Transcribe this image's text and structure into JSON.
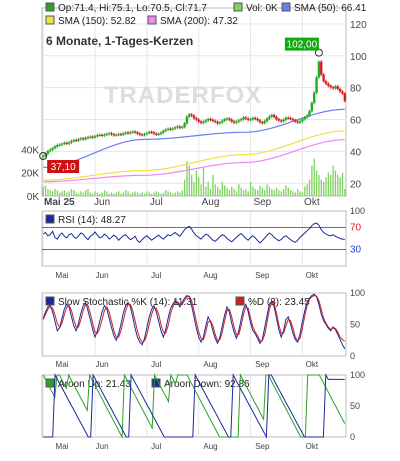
{
  "chart_data": [
    {
      "type": "candlestick",
      "title": "6 Monate, 1-Tages-Kerzen",
      "watermark": "TRADERFOX",
      "legend": [
        {
          "name": "Op:71.4, Hi:75.1, Lo:70.5, Cl:71.7",
          "color": "#2ca02c"
        },
        {
          "name": "Vol: 0K",
          "color": "#7dd35d"
        },
        {
          "name": "SMA (50): 66.41",
          "color": "#6680ee"
        },
        {
          "name": "SMA (150): 52.82",
          "color": "#f0e040"
        },
        {
          "name": "SMA (200): 47.32",
          "color": "#ee88ee"
        }
      ],
      "price_axis": [
        20,
        40,
        60,
        80,
        100,
        120
      ],
      "price_range": [
        12,
        130
      ],
      "volume_axis": [
        "0K",
        "20K",
        "40K"
      ],
      "x_labels": [
        "Mai 25",
        "Jun",
        "Jul",
        "Aug",
        "Sep",
        "Okt"
      ],
      "annotations": [
        {
          "label": "102,00",
          "color": "#11aa11",
          "value": 102
        },
        {
          "label": "37,10",
          "color": "#cc1111",
          "value": 37.1
        }
      ],
      "colors": {
        "up": "#22aa22",
        "down": "#cc2222",
        "grid": "#e6e6e6"
      },
      "close": [
        37.1,
        38.5,
        40.2,
        41.1,
        42.0,
        43.1,
        44.0,
        44.2,
        44.8,
        45.3,
        44.9,
        45.6,
        46.5,
        47.1,
        46.8,
        47.6,
        48.1,
        47.7,
        48.4,
        48.9,
        49.2,
        48.8,
        49.5,
        50.1,
        50.3,
        50.0,
        50.5,
        50.9,
        51.3,
        50.7,
        50.2,
        50.4,
        50.8,
        50.5,
        51.2,
        51.8,
        51.4,
        52.0,
        52.4,
        51.9,
        51.2,
        50.6,
        50.3,
        50.8,
        51.5,
        52.2,
        51.9,
        51.1,
        50.6,
        51.0,
        51.8,
        52.9,
        53.6,
        54.2,
        53.8,
        54.4,
        55.0,
        55.6,
        54.9,
        55.3,
        57.6,
        61.8,
        63.2,
        62.5,
        60.8,
        59.9,
        58.7,
        57.9,
        58.6,
        59.4,
        60.3,
        59.8,
        59.1,
        58.5,
        57.6,
        58.2,
        59.3,
        60.1,
        60.6,
        59.9,
        58.8,
        58.1,
        58.7,
        59.5,
        60.2,
        61.3,
        60.6,
        59.8,
        60.1,
        61.0,
        60.4,
        59.5,
        58.3,
        57.8,
        59.0,
        60.6,
        61.9,
        62.8,
        61.6,
        60.2,
        59.4,
        58.9,
        59.8,
        61.1,
        60.9,
        60.3,
        59.6,
        58.8,
        58.1,
        58.9,
        60.2,
        61.3,
        62.5,
        65.2,
        70.4,
        76.8,
        86.5,
        96.3,
        88.2,
        84.1,
        82.5,
        81.2,
        80.3,
        79.6,
        80.8,
        79.2,
        77.6,
        76.3,
        71.7
      ],
      "volume": [
        8,
        9,
        6,
        5,
        4,
        6,
        5,
        3,
        4,
        5,
        3,
        4,
        6,
        5,
        3,
        2,
        4,
        3,
        5,
        6,
        3,
        2,
        4,
        3,
        2,
        3,
        5,
        4,
        2,
        3,
        2,
        3,
        4,
        2,
        3,
        5,
        4,
        2,
        3,
        4,
        3,
        2,
        3,
        2,
        4,
        3,
        2,
        3,
        4,
        3,
        2,
        3,
        5,
        4,
        3,
        2,
        3,
        4,
        3,
        5,
        14,
        30,
        26,
        18,
        12,
        22,
        16,
        10,
        24,
        8,
        12,
        6,
        18,
        10,
        8,
        6,
        12,
        9,
        7,
        5,
        8,
        6,
        4,
        10,
        7,
        5,
        6,
        4,
        12,
        8,
        6,
        5,
        9,
        7,
        5,
        10,
        8,
        6,
        5,
        7,
        5,
        4,
        6,
        9,
        7,
        5,
        4,
        3,
        6,
        4,
        3,
        8,
        10,
        14,
        26,
        32,
        22,
        18,
        14,
        12,
        16,
        20,
        18,
        26,
        22,
        18,
        16,
        20,
        6
      ],
      "sma_curves": {
        "sma50": [
          30,
          47.5,
          52,
          66.41
        ],
        "sma150": [
          22,
          28,
          38,
          52.82
        ],
        "sma200": [
          21,
          25,
          33,
          47.32
        ]
      }
    },
    {
      "type": "line",
      "title": "RSI (14): 48.27",
      "axis": [
        30,
        70,
        100
      ],
      "levels": [
        30,
        70
      ],
      "range": [
        0,
        100
      ],
      "series": [
        {
          "name": "RSI (14): 48.27",
          "color": "#1a2a9a",
          "values": [
            58,
            61,
            55,
            57,
            63,
            52,
            49,
            56,
            60,
            54,
            51,
            57,
            59,
            53,
            50,
            55,
            60,
            58,
            52,
            48,
            54,
            57,
            62,
            56,
            51,
            53,
            58,
            55,
            49,
            52,
            56,
            53,
            47,
            51,
            55,
            57,
            52,
            48,
            50,
            54,
            46,
            43,
            48,
            52,
            55,
            51,
            47,
            50,
            53,
            56,
            52,
            49,
            53,
            57,
            55,
            58,
            61,
            57,
            54,
            60,
            66,
            70,
            72,
            67,
            60,
            55,
            52,
            49,
            54,
            58,
            56,
            51,
            47,
            45,
            49,
            53,
            57,
            55,
            50,
            47,
            44,
            48,
            52,
            56,
            59,
            55,
            50,
            47,
            52,
            55,
            51,
            46,
            42,
            46,
            51,
            56,
            60,
            57,
            52,
            49,
            46,
            48,
            53,
            55,
            51,
            48,
            45,
            43,
            47,
            52,
            56,
            60,
            64,
            68,
            73,
            77,
            78,
            74,
            66,
            61,
            58,
            56,
            55,
            57,
            54,
            52,
            50,
            49,
            48.27
          ]
        }
      ],
      "x_labels": [
        "Mai",
        "Jun",
        "Jul",
        "Aug",
        "Sep",
        "Okt"
      ]
    },
    {
      "type": "line",
      "title": "Slow Stochastic",
      "axis": [
        0,
        50,
        100
      ],
      "range": [
        0,
        100
      ],
      "series": [
        {
          "name": "Slow Stochastic %K (14): 11.31",
          "color": "#1a2a9a",
          "values": [
            60,
            70,
            78,
            80,
            70,
            55,
            40,
            45,
            60,
            75,
            82,
            78,
            62,
            48,
            40,
            52,
            68,
            80,
            85,
            72,
            58,
            42,
            30,
            40,
            55,
            70,
            80,
            75,
            60,
            45,
            32,
            25,
            35,
            50,
            68,
            80,
            85,
            78,
            62,
            44,
            30,
            22,
            18,
            28,
            45,
            62,
            74,
            80,
            70,
            55,
            40,
            30,
            42,
            60,
            75,
            82,
            88,
            84,
            78,
            85,
            92,
            96,
            94,
            80,
            62,
            44,
            30,
            22,
            30,
            48,
            62,
            55,
            40,
            28,
            20,
            30,
            48,
            65,
            78,
            70,
            52,
            38,
            28,
            40,
            58,
            75,
            82,
            70,
            52,
            40,
            35,
            28,
            20,
            26,
            45,
            65,
            82,
            88,
            78,
            60,
            42,
            30,
            40,
            58,
            62,
            50,
            36,
            26,
            22,
            35,
            55,
            72,
            85,
            92,
            96,
            98,
            94,
            82,
            66,
            56,
            50,
            44,
            40,
            46,
            42,
            34,
            26,
            18,
            11.31
          ]
        },
        {
          "name": "%D (3): 23.45",
          "color": "#cc2222",
          "values": [
            58,
            66,
            74,
            79,
            76,
            65,
            52,
            45,
            52,
            66,
            77,
            80,
            72,
            58,
            46,
            46,
            58,
            72,
            82,
            80,
            68,
            52,
            38,
            36,
            44,
            58,
            72,
            78,
            70,
            55,
            40,
            30,
            30,
            40,
            56,
            72,
            82,
            82,
            72,
            56,
            40,
            28,
            22,
            24,
            34,
            50,
            66,
            76,
            76,
            66,
            50,
            38,
            36,
            48,
            66,
            78,
            86,
            86,
            82,
            82,
            88,
            94,
            95,
            88,
            72,
            54,
            38,
            28,
            26,
            38,
            54,
            56,
            48,
            34,
            24,
            26,
            38,
            56,
            72,
            74,
            62,
            46,
            34,
            34,
            48,
            66,
            78,
            76,
            60,
            46,
            38,
            32,
            24,
            24,
            34,
            54,
            74,
            86,
            84,
            68,
            50,
            36,
            36,
            48,
            58,
            56,
            44,
            30,
            24,
            28,
            44,
            64,
            80,
            90,
            94,
            96,
            95,
            88,
            74,
            60,
            52,
            46,
            42,
            44,
            44,
            38,
            30,
            26,
            23.45
          ]
        }
      ],
      "x_labels": [
        "Mai",
        "Jun",
        "Jul",
        "Aug",
        "Sep",
        "Okt"
      ]
    },
    {
      "type": "line",
      "title": "Aroon",
      "axis": [
        0,
        50,
        100
      ],
      "range": [
        0,
        100
      ],
      "series": [
        {
          "name": "Aroon Up: 21.43",
          "color": "#2ca02c",
          "values": [
            100,
            92.86,
            85.71,
            78.57,
            71.43,
            64.29,
            100,
            100,
            92.86,
            85.71,
            78.57,
            100,
            92.86,
            85.71,
            78.57,
            71.43,
            64.29,
            57.14,
            50,
            42.86,
            100,
            92.86,
            85.71,
            78.57,
            71.43,
            64.29,
            57.14,
            50,
            42.86,
            35.71,
            28.57,
            21.43,
            14.29,
            7.14,
            0,
            100,
            92.86,
            85.71,
            78.57,
            71.43,
            64.29,
            57.14,
            50,
            42.86,
            35.71,
            28.57,
            21.43,
            14.29,
            100,
            92.86,
            85.71,
            78.57,
            71.43,
            64.29,
            57.14,
            100,
            92.86,
            85.71,
            100,
            100,
            100,
            100,
            100,
            92.86,
            85.71,
            78.57,
            71.43,
            64.29,
            57.14,
            50,
            42.86,
            35.71,
            28.57,
            21.43,
            14.29,
            7.14,
            0,
            0,
            0,
            0,
            0,
            0,
            0,
            0,
            0,
            100,
            92.86,
            85.71,
            78.57,
            71.43,
            64.29,
            57.14,
            50,
            42.86,
            35.71,
            28.57,
            100,
            100,
            92.86,
            85.71,
            78.57,
            71.43,
            64.29,
            57.14,
            50,
            42.86,
            35.71,
            28.57,
            21.43,
            14.29,
            7.14,
            0,
            0,
            0,
            100,
            100,
            100,
            100,
            100,
            100,
            92.86,
            85.71,
            78.57,
            71.43,
            64.29,
            57.14,
            50,
            42.86,
            35.71,
            28.57,
            21.43
          ]
        },
        {
          "name": "Aroon Down: 92.86",
          "color": "#1a2a9a",
          "values": [
            0,
            0,
            0,
            0,
            0,
            100,
            92.86,
            85.71,
            78.57,
            71.43,
            64.29,
            57.14,
            50,
            42.86,
            35.71,
            28.57,
            21.43,
            14.29,
            7.14,
            0,
            0,
            100,
            92.86,
            85.71,
            78.57,
            71.43,
            64.29,
            57.14,
            50,
            42.86,
            35.71,
            28.57,
            21.43,
            14.29,
            7.14,
            0,
            0,
            100,
            92.86,
            85.71,
            78.57,
            71.43,
            64.29,
            57.14,
            50,
            42.86,
            35.71,
            28.57,
            21.43,
            14.29,
            7.14,
            0,
            0,
            0,
            0,
            0,
            0,
            0,
            0,
            0,
            0,
            0,
            0,
            0,
            100,
            92.86,
            85.71,
            78.57,
            71.43,
            64.29,
            57.14,
            50,
            42.86,
            35.71,
            28.57,
            21.43,
            14.29,
            7.14,
            0,
            0,
            100,
            92.86,
            85.71,
            78.57,
            71.43,
            64.29,
            57.14,
            50,
            42.86,
            35.71,
            28.57,
            21.43,
            14.29,
            7.14,
            0,
            100,
            100,
            92.86,
            85.71,
            78.57,
            71.43,
            64.29,
            57.14,
            50,
            42.86,
            35.71,
            28.57,
            21.43,
            14.29,
            7.14,
            0,
            0,
            0,
            0,
            0,
            0,
            0,
            0,
            0,
            100,
            92.86,
            92.86,
            92.86,
            92.86,
            92.86,
            92.86,
            92.86,
            92.86
          ]
        }
      ],
      "x_labels": [
        "Mai",
        "Jun",
        "Jul",
        "Aug",
        "Sep",
        "Okt"
      ]
    }
  ]
}
